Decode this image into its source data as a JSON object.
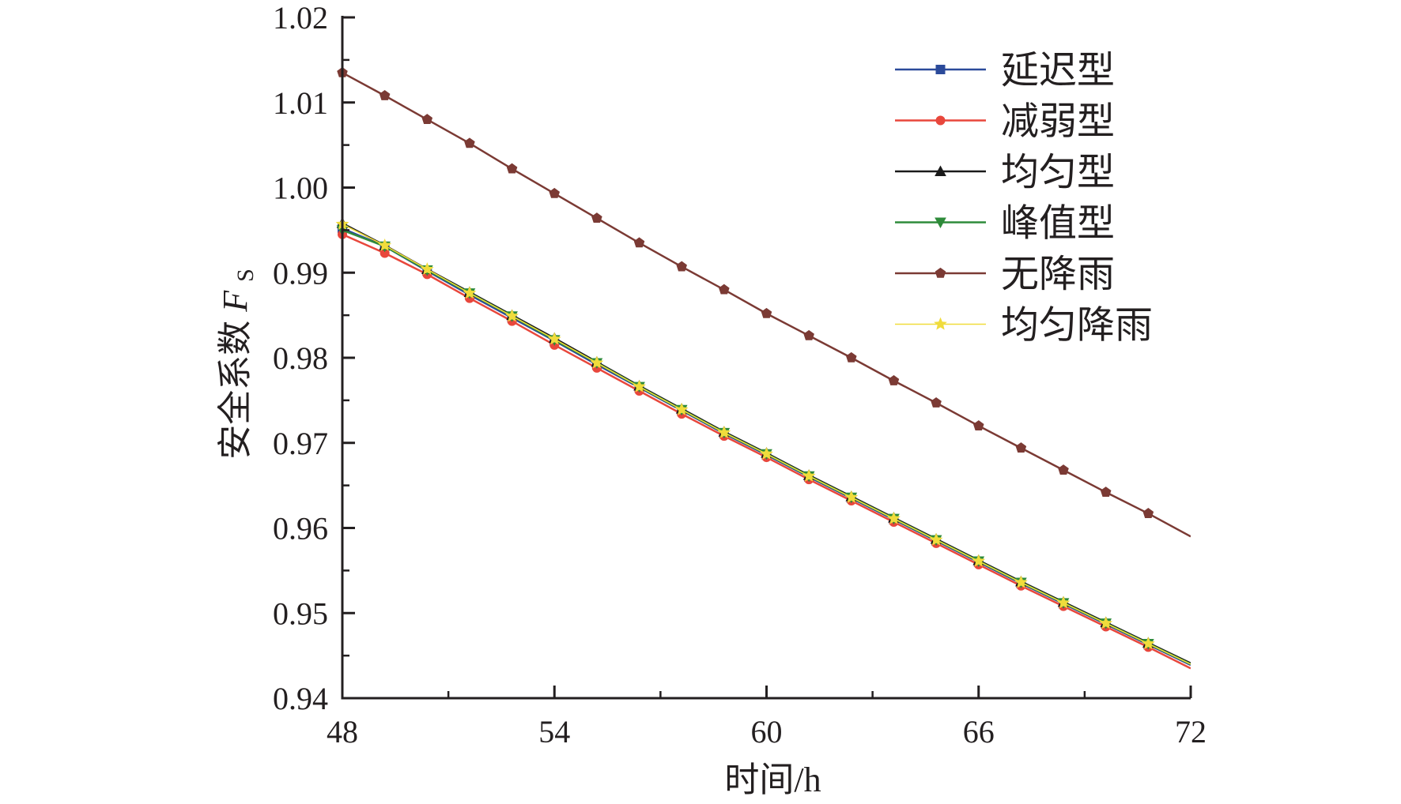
{
  "chart_data": {
    "type": "line",
    "title": "",
    "xlabel": "时间/h",
    "ylabel": {
      "main": "安全系数",
      "symbol": "F",
      "subscript": "S"
    },
    "xlim": [
      48,
      72
    ],
    "ylim": [
      0.94,
      1.02
    ],
    "xticks": [
      48,
      54,
      60,
      66,
      72
    ],
    "xtick_labels": [
      "48",
      "54",
      "60",
      "66",
      "72"
    ],
    "yticks": [
      0.94,
      0.95,
      0.96,
      0.97,
      0.98,
      0.99,
      1.0,
      1.01,
      1.02
    ],
    "ytick_labels": [
      "0.94",
      "0.95",
      "0.96",
      "0.97",
      "0.98",
      "0.99",
      "1.00",
      "1.01",
      "1.02"
    ],
    "grid": false,
    "legend_position": "top-right",
    "x": [
      48,
      49.2,
      50.4,
      51.6,
      52.8,
      54,
      55.2,
      56.4,
      57.6,
      58.8,
      60,
      61.2,
      62.4,
      63.6,
      64.8,
      66,
      67.2,
      68.4,
      69.6,
      70.8,
      72
    ],
    "series": [
      {
        "name": "延迟型",
        "color": "#2b4a9a",
        "marker": "square",
        "values": [
          0.9952,
          0.9931,
          0.9902,
          0.9874,
          0.9847,
          0.982,
          0.9792,
          0.9765,
          0.9738,
          0.9711,
          0.9686,
          0.966,
          0.9635,
          0.961,
          0.9585,
          0.956,
          0.9535,
          0.9511,
          0.9487,
          0.9463,
          0.9439
        ]
      },
      {
        "name": "减弱型",
        "color": "#e8473c",
        "marker": "circle",
        "values": [
          0.9945,
          0.9923,
          0.9898,
          0.987,
          0.9843,
          0.9815,
          0.9788,
          0.9761,
          0.9734,
          0.9708,
          0.9683,
          0.9657,
          0.9632,
          0.9607,
          0.9582,
          0.9557,
          0.9532,
          0.9508,
          0.9484,
          0.946,
          0.9435
        ]
      },
      {
        "name": "均匀型",
        "color": "#1a1a1a",
        "marker": "triangle-up",
        "values": [
          0.9958,
          0.9932,
          0.9904,
          0.9877,
          0.985,
          0.9823,
          0.9795,
          0.9767,
          0.974,
          0.9713,
          0.9688,
          0.9662,
          0.9637,
          0.9612,
          0.9587,
          0.9562,
          0.9537,
          0.9513,
          0.9489,
          0.9465,
          0.9441
        ]
      },
      {
        "name": "峰值型",
        "color": "#2e8b3a",
        "marker": "triangle-down",
        "values": [
          0.995,
          0.9931,
          0.9903,
          0.9876,
          0.9849,
          0.9821,
          0.9794,
          0.9766,
          0.9739,
          0.9712,
          0.9687,
          0.9661,
          0.9636,
          0.9611,
          0.9586,
          0.9561,
          0.9536,
          0.9512,
          0.9488,
          0.9464,
          0.944
        ]
      },
      {
        "name": "无降雨",
        "color": "#7b3a34",
        "marker": "pentagon",
        "values": [
          1.0135,
          1.0108,
          1.008,
          1.0052,
          1.0022,
          0.9993,
          0.9964,
          0.9935,
          0.9907,
          0.988,
          0.9852,
          0.9826,
          0.98,
          0.9773,
          0.9747,
          0.972,
          0.9694,
          0.9668,
          0.9642,
          0.9617,
          0.959
        ]
      },
      {
        "name": "均匀降雨",
        "color": "#f0dc3c",
        "marker": "star",
        "values": [
          0.9957,
          0.9932,
          0.9904,
          0.9876,
          0.9849,
          0.9822,
          0.9794,
          0.9766,
          0.9739,
          0.9712,
          0.9687,
          0.9661,
          0.9636,
          0.9611,
          0.9586,
          0.9561,
          0.9536,
          0.9512,
          0.9488,
          0.9464,
          0.944
        ]
      }
    ]
  }
}
